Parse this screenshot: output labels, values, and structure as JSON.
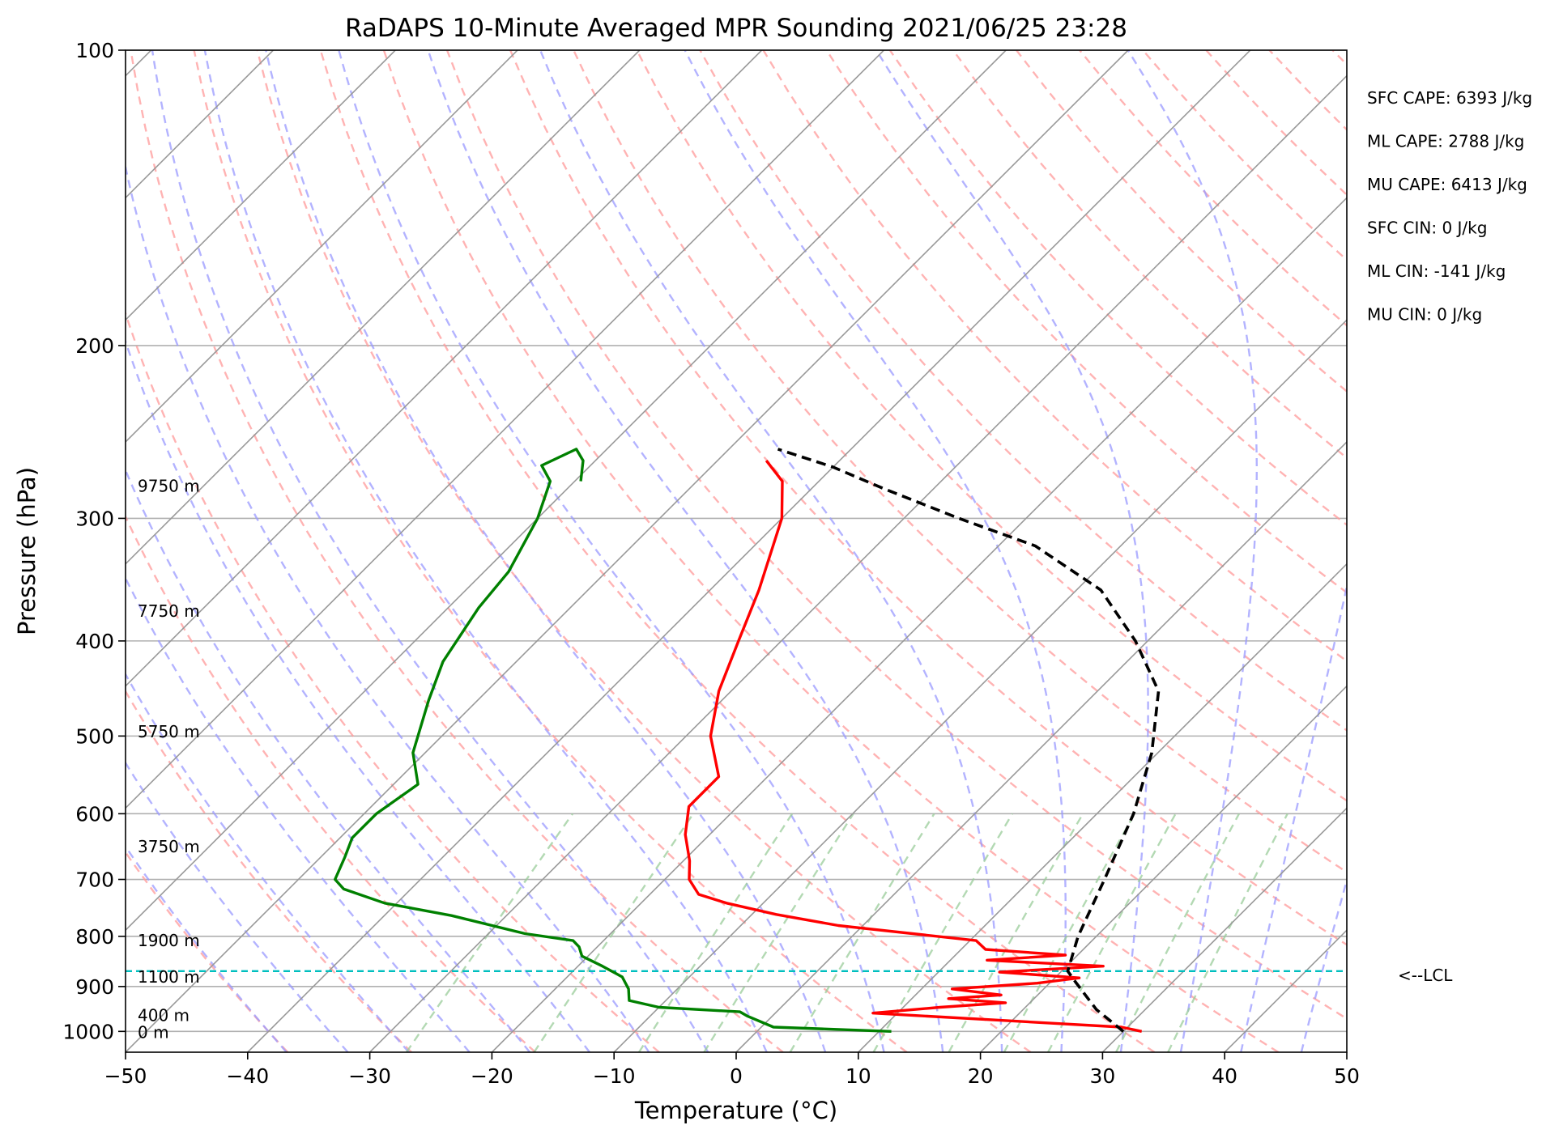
{
  "chart_data": {
    "type": "line",
    "title": "RaDAPS 10-Minute Averaged MPR Sounding 2021/06/25 23:28",
    "xlabel": "Temperature (°C)",
    "ylabel": "Pressure (hPa)",
    "xlim": [
      -50,
      50
    ],
    "ylim": [
      1050,
      100
    ],
    "y_scale": "log",
    "skew": "skew-T (isotherms slanted 45°)",
    "x_ticks": [
      "−50",
      "−40",
      "−30",
      "−20",
      "−10",
      "0",
      "10",
      "20",
      "30",
      "40",
      "50"
    ],
    "x_tick_values": [
      -50,
      -40,
      -30,
      -20,
      -10,
      0,
      10,
      20,
      30,
      40,
      50
    ],
    "y_ticks": [
      "100",
      "200",
      "300",
      "400",
      "500",
      "600",
      "700",
      "800",
      "900",
      "1000"
    ],
    "y_tick_values": [
      100,
      200,
      300,
      400,
      500,
      600,
      700,
      800,
      900,
      1000
    ],
    "grid": true,
    "height_labels": [
      {
        "text": "9750 m",
        "p": 278
      },
      {
        "text": "7750 m",
        "p": 373
      },
      {
        "text": "5750 m",
        "p": 495
      },
      {
        "text": "3750 m",
        "p": 648
      },
      {
        "text": "1900 m",
        "p": 808
      },
      {
        "text": "1100 m",
        "p": 880
      },
      {
        "text": "400 m",
        "p": 963
      },
      {
        "text": "0 m",
        "p": 1002
      }
    ],
    "lcl": {
      "p": 868,
      "label": "<--LCL"
    },
    "indices": [
      "SFC CAPE: 6393 J/kg",
      "ML CAPE: 2788 J/kg",
      "MU CAPE: 6413 J/kg",
      "SFC CIN: 0 J/kg",
      "ML CIN: -141 J/kg",
      "MU CIN: 0 J/kg"
    ],
    "series": [
      {
        "role": "temperature",
        "color": "#ff0000",
        "points": [
          [
            31.5,
            1000
          ],
          [
            29.5,
            990
          ],
          [
            8,
            958
          ],
          [
            13,
            945
          ],
          [
            18,
            935
          ],
          [
            13,
            926
          ],
          [
            17,
            918
          ],
          [
            12.5,
            905
          ],
          [
            19,
            893
          ],
          [
            22,
            882
          ],
          [
            15,
            870
          ],
          [
            23,
            858
          ],
          [
            13,
            846
          ],
          [
            19,
            836
          ],
          [
            12,
            825
          ],
          [
            10.5,
            808
          ],
          [
            -2,
            780
          ],
          [
            -8,
            760
          ],
          [
            -13,
            740
          ],
          [
            -16,
            725
          ],
          [
            -18,
            700
          ],
          [
            -19.5,
            670
          ],
          [
            -22,
            630
          ],
          [
            -24,
            590
          ],
          [
            -24,
            550
          ],
          [
            -28,
            500
          ],
          [
            -31,
            450
          ],
          [
            -33.5,
            400
          ],
          [
            -36,
            355
          ],
          [
            -40,
            300
          ],
          [
            -43,
            275
          ],
          [
            -46,
            262
          ]
        ]
      },
      {
        "role": "dewpoint",
        "color": "#008000",
        "points": [
          [
            11,
            1000
          ],
          [
            1,
            990
          ],
          [
            -2,
            965
          ],
          [
            -3,
            955
          ],
          [
            -10,
            945
          ],
          [
            -13,
            930
          ],
          [
            -14,
            905
          ],
          [
            -15.5,
            880
          ],
          [
            -18,
            858
          ],
          [
            -20.5,
            838
          ],
          [
            -21.5,
            820
          ],
          [
            -22.5,
            808
          ],
          [
            -27,
            795
          ],
          [
            -34.5,
            762
          ],
          [
            -41,
            740
          ],
          [
            -45.5,
            716
          ],
          [
            -47,
            700
          ],
          [
            -48,
            665
          ],
          [
            -49,
            635
          ],
          [
            -49,
            600
          ],
          [
            -48,
            560
          ],
          [
            -51,
            520
          ],
          [
            -54,
            460
          ],
          [
            -56,
            420
          ],
          [
            -57.5,
            370
          ],
          [
            -58,
            340
          ],
          [
            -60,
            300
          ],
          [
            -62,
            275
          ],
          [
            -64,
            265
          ],
          [
            -62.5,
            255
          ],
          [
            -61,
            262
          ],
          [
            -59.5,
            275
          ]
        ]
      },
      {
        "role": "parcel",
        "color": "#000000",
        "points": [
          [
            30,
            1000
          ],
          [
            26,
            950
          ],
          [
            22,
            890
          ],
          [
            20.5,
            868
          ],
          [
            18.5,
            800
          ],
          [
            16,
            700
          ],
          [
            13,
            600
          ],
          [
            9.5,
            520
          ],
          [
            5,
            450
          ],
          [
            -1,
            400
          ],
          [
            -8,
            355
          ],
          [
            -17,
            320
          ],
          [
            -25.5,
            300
          ],
          [
            -34,
            280
          ],
          [
            -40,
            266
          ],
          [
            -46,
            255
          ]
        ]
      }
    ],
    "background_lines": {
      "dry_adiabats": {
        "color": "#ff9999",
        "style": "dashed"
      },
      "moist_adiabats": {
        "color": "#9999ff",
        "style": "dashed"
      },
      "mixing_ratio_lines": {
        "color": "#99cc99",
        "style": "dashed"
      },
      "isotherms": {
        "color": "#999999",
        "style": "solid"
      },
      "lcl_line": {
        "color": "#00bfbf",
        "style": "dashed"
      }
    }
  }
}
